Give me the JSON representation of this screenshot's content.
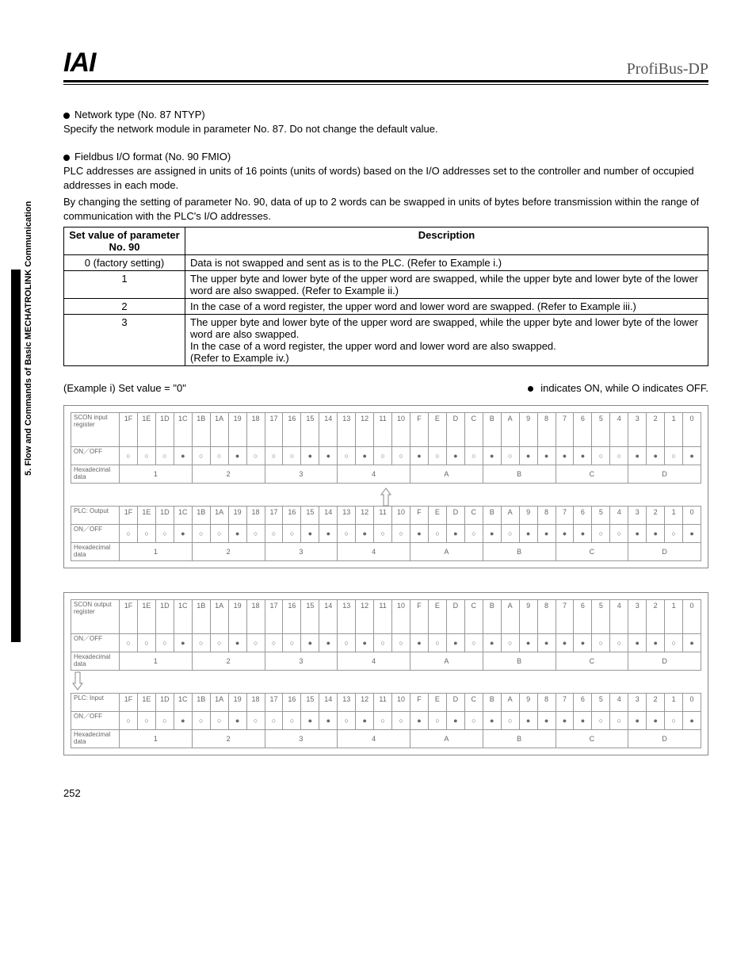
{
  "header": {
    "logo": "IAI",
    "brand": "ProfiBus-DP"
  },
  "sideLabel": "5. Flow and Commands of Basic MECHATROLINK Communication",
  "section1": {
    "title": "Network type (No. 87 NTYP)",
    "body": "Specify the network module in parameter No. 87. Do not change the default value."
  },
  "section2": {
    "title": "Fieldbus I/O format (No. 90 FMIO)",
    "body1": "PLC addresses are assigned in units of 16 points (units of words) based on the I/O addresses set to the controller and number of occupied addresses in each mode.",
    "body2": "By changing the setting of parameter No. 90, data of up to 2 words can be swapped in units of bytes before transmission within the range of communication with the PLC's I/O addresses."
  },
  "table": {
    "headers": [
      "Set value of parameter No. 90",
      "Description"
    ],
    "rows": [
      {
        "v": "0 (factory setting)",
        "d": "Data is not swapped and sent as is to the PLC. (Refer to Example i.)"
      },
      {
        "v": "1",
        "d": "The upper byte and lower byte of the upper word are swapped, while the upper byte and lower byte of the lower word are also swapped.  (Refer to Example ii.)"
      },
      {
        "v": "2",
        "d": "In the case of a word register, the upper word and lower word are swapped. (Refer to Example iii.)"
      },
      {
        "v": "3",
        "d": "The upper byte and lower byte of the upper word are swapped, while the upper byte and lower byte of the lower word are also swapped.\nIn the case of a word register, the upper word and lower word are also swapped.\n(Refer to Example iv.)"
      }
    ]
  },
  "example": {
    "left": "(Example i) Set value = \"0\"",
    "rightPrefix": "indicates ON, while O indicates OFF."
  },
  "bitHeaders": [
    "1F",
    "1E",
    "1D",
    "1C",
    "1B",
    "1A",
    "19",
    "18",
    "17",
    "16",
    "15",
    "14",
    "13",
    "12",
    "11",
    "10",
    "F",
    "E",
    "D",
    "C",
    "B",
    "A",
    "9",
    "8",
    "7",
    "6",
    "5",
    "4",
    "3",
    "2",
    "1",
    "0"
  ],
  "pattern": [
    "○",
    "○",
    "○",
    "●",
    "○",
    "○",
    "●",
    "○",
    "○",
    "○",
    "●",
    "●",
    "○",
    "●",
    "○",
    "○",
    "●",
    "○",
    "●",
    "○",
    "●",
    "○",
    "●",
    "●",
    "●",
    "●",
    "○",
    "○",
    "●",
    "●",
    "○",
    "●"
  ],
  "hexGroups": [
    "1",
    "2",
    "3",
    "4",
    "A",
    "B",
    "C",
    "D"
  ],
  "block1": {
    "row1Label": "SCON input register",
    "row2Label": "ON／OFF",
    "row3Label": "Hexadecimal data",
    "row4Label": "PLC: Output",
    "row5Label": "ON／OFF",
    "row6Label": "Hexadecimal data"
  },
  "block2": {
    "row1Label": "SCON output register",
    "row2Label": "ON／OFF",
    "row3Label": "Hexadecimal data",
    "row4Label": "PLC: Input",
    "row5Label": "ON／OFF",
    "row6Label": "Hexadecimal data"
  },
  "pageNum": "252"
}
